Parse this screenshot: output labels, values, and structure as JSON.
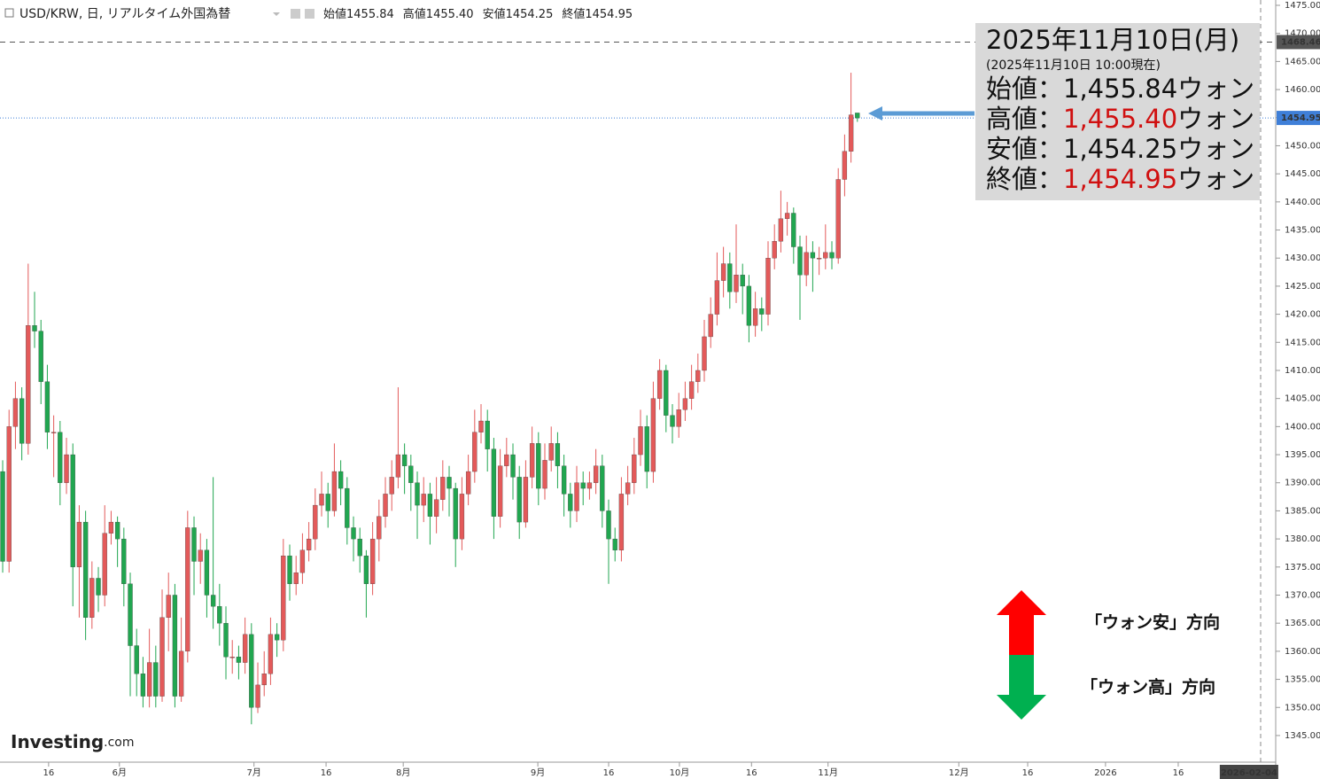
{
  "chart_data": {
    "type": "candlestick",
    "header": {
      "symbol": "USD/KRW, 日, リアルタイム外国為替",
      "ohlc": [
        {
          "label": "始値",
          "value": "1455.84"
        },
        {
          "label": "高値",
          "value": "1455.40"
        },
        {
          "label": "安値",
          "value": "1454.25"
        },
        {
          "label": "終値",
          "value": "1454.95"
        }
      ]
    },
    "up_color": "#e35a5a",
    "down_color": "#21a650",
    "candles": [
      [
        1392,
        1394,
        1374,
        1376
      ],
      [
        1376,
        1403,
        1374,
        1400
      ],
      [
        1400,
        1408,
        1396,
        1405
      ],
      [
        1405,
        1407,
        1394,
        1397
      ],
      [
        1397,
        1429,
        1395,
        1418
      ],
      [
        1418,
        1424,
        1414,
        1417
      ],
      [
        1417,
        1419,
        1404,
        1408
      ],
      [
        1408,
        1411,
        1396,
        1399
      ],
      [
        1399,
        1402,
        1391,
        1399
      ],
      [
        1399,
        1401,
        1386,
        1390
      ],
      [
        1390,
        1398,
        1388,
        1395
      ],
      [
        1395,
        1397,
        1368,
        1375
      ],
      [
        1375,
        1386,
        1366,
        1383
      ],
      [
        1383,
        1385,
        1362,
        1366
      ],
      [
        1366,
        1376,
        1364,
        1373
      ],
      [
        1373,
        1375,
        1367,
        1370
      ],
      [
        1370,
        1386,
        1368,
        1381
      ],
      [
        1381,
        1385,
        1379,
        1383
      ],
      [
        1383,
        1384,
        1375,
        1380
      ],
      [
        1380,
        1382,
        1368,
        1372
      ],
      [
        1372,
        1374,
        1352,
        1361
      ],
      [
        1361,
        1364,
        1352,
        1356
      ],
      [
        1356,
        1359,
        1350,
        1352
      ],
      [
        1352,
        1364,
        1350,
        1358
      ],
      [
        1358,
        1361,
        1350,
        1352
      ],
      [
        1352,
        1371,
        1351,
        1366
      ],
      [
        1366,
        1374,
        1360,
        1370
      ],
      [
        1370,
        1372,
        1350,
        1352
      ],
      [
        1352,
        1366,
        1351,
        1360
      ],
      [
        1360,
        1385,
        1358,
        1382
      ],
      [
        1382,
        1384,
        1370,
        1376
      ],
      [
        1376,
        1381,
        1372,
        1378
      ],
      [
        1378,
        1380,
        1366,
        1370
      ],
      [
        1370,
        1391,
        1364,
        1368
      ],
      [
        1368,
        1372,
        1361,
        1365
      ],
      [
        1365,
        1368,
        1355,
        1359
      ],
      [
        1359,
        1362,
        1356,
        1359
      ],
      [
        1359,
        1361,
        1355,
        1358
      ],
      [
        1358,
        1366,
        1356,
        1363
      ],
      [
        1363,
        1365,
        1347,
        1350
      ],
      [
        1350,
        1358,
        1349,
        1354
      ],
      [
        1354,
        1360,
        1352,
        1356
      ],
      [
        1356,
        1366,
        1354,
        1363
      ],
      [
        1363,
        1365,
        1359,
        1362
      ],
      [
        1362,
        1380,
        1360,
        1377
      ],
      [
        1377,
        1379,
        1369,
        1372
      ],
      [
        1372,
        1377,
        1370,
        1374
      ],
      [
        1374,
        1381,
        1372,
        1378
      ],
      [
        1378,
        1383,
        1376,
        1380
      ],
      [
        1380,
        1389,
        1378,
        1386
      ],
      [
        1386,
        1392,
        1384,
        1388
      ],
      [
        1388,
        1390,
        1382,
        1385
      ],
      [
        1385,
        1397,
        1384,
        1392
      ],
      [
        1392,
        1394,
        1386,
        1389
      ],
      [
        1389,
        1391,
        1379,
        1382
      ],
      [
        1382,
        1384,
        1376,
        1380
      ],
      [
        1380,
        1382,
        1374,
        1377
      ],
      [
        1377,
        1378,
        1366,
        1372
      ],
      [
        1372,
        1383,
        1370,
        1380
      ],
      [
        1380,
        1387,
        1376,
        1384
      ],
      [
        1384,
        1391,
        1382,
        1388
      ],
      [
        1388,
        1394,
        1385,
        1391
      ],
      [
        1391,
        1407,
        1389,
        1395
      ],
      [
        1395,
        1397,
        1388,
        1393
      ],
      [
        1393,
        1395,
        1385,
        1390
      ],
      [
        1390,
        1392,
        1380,
        1386
      ],
      [
        1386,
        1391,
        1383,
        1388
      ],
      [
        1388,
        1390,
        1379,
        1384
      ],
      [
        1384,
        1391,
        1381,
        1387
      ],
      [
        1387,
        1394,
        1385,
        1391
      ],
      [
        1391,
        1393,
        1384,
        1389
      ],
      [
        1389,
        1390,
        1375,
        1380
      ],
      [
        1380,
        1391,
        1378,
        1388
      ],
      [
        1388,
        1395,
        1386,
        1392
      ],
      [
        1392,
        1403,
        1390,
        1399
      ],
      [
        1399,
        1404,
        1397,
        1401
      ],
      [
        1401,
        1403,
        1392,
        1396
      ],
      [
        1396,
        1398,
        1380,
        1384
      ],
      [
        1384,
        1396,
        1382,
        1393
      ],
      [
        1393,
        1398,
        1391,
        1395
      ],
      [
        1395,
        1397,
        1387,
        1391
      ],
      [
        1391,
        1393,
        1380,
        1383
      ],
      [
        1383,
        1394,
        1382,
        1391
      ],
      [
        1391,
        1400,
        1389,
        1397
      ],
      [
        1397,
        1399,
        1386,
        1389
      ],
      [
        1389,
        1397,
        1387,
        1394
      ],
      [
        1394,
        1400,
        1392,
        1397
      ],
      [
        1397,
        1399,
        1389,
        1393
      ],
      [
        1393,
        1395,
        1384,
        1388
      ],
      [
        1388,
        1390,
        1382,
        1385
      ],
      [
        1385,
        1393,
        1383,
        1390
      ],
      [
        1390,
        1392,
        1386,
        1389
      ],
      [
        1389,
        1392,
        1387,
        1390
      ],
      [
        1390,
        1396,
        1388,
        1393
      ],
      [
        1393,
        1395,
        1382,
        1385
      ],
      [
        1385,
        1387,
        1372,
        1380
      ],
      [
        1380,
        1382,
        1376,
        1378
      ],
      [
        1378,
        1391,
        1376,
        1388
      ],
      [
        1388,
        1393,
        1386,
        1390
      ],
      [
        1390,
        1398,
        1388,
        1395
      ],
      [
        1395,
        1403,
        1393,
        1400
      ],
      [
        1400,
        1402,
        1389,
        1392
      ],
      [
        1392,
        1408,
        1390,
        1405
      ],
      [
        1405,
        1412,
        1403,
        1410
      ],
      [
        1410,
        1411,
        1399,
        1402
      ],
      [
        1402,
        1404,
        1397,
        1400
      ],
      [
        1400,
        1406,
        1398,
        1403
      ],
      [
        1403,
        1408,
        1401,
        1405
      ],
      [
        1405,
        1411,
        1403,
        1408
      ],
      [
        1408,
        1413,
        1406,
        1410
      ],
      [
        1410,
        1419,
        1408,
        1416
      ],
      [
        1416,
        1423,
        1414,
        1420
      ],
      [
        1420,
        1431,
        1418,
        1426
      ],
      [
        1426,
        1432,
        1423,
        1429
      ],
      [
        1429,
        1431,
        1421,
        1424
      ],
      [
        1424,
        1436,
        1422,
        1427
      ],
      [
        1427,
        1429,
        1420,
        1425
      ],
      [
        1425,
        1427,
        1415,
        1418
      ],
      [
        1418,
        1424,
        1416,
        1421
      ],
      [
        1421,
        1423,
        1417,
        1420
      ],
      [
        1420,
        1433,
        1418,
        1430
      ],
      [
        1430,
        1436,
        1428,
        1433
      ],
      [
        1433,
        1442,
        1431,
        1437
      ],
      [
        1437,
        1440,
        1434,
        1438
      ],
      [
        1438,
        1439,
        1429,
        1432
      ],
      [
        1432,
        1434,
        1419,
        1427
      ],
      [
        1427,
        1434,
        1425,
        1431
      ],
      [
        1431,
        1433,
        1424,
        1430
      ],
      [
        1430,
        1432,
        1427,
        1430
      ],
      [
        1430,
        1436,
        1428,
        1431
      ],
      [
        1431,
        1433,
        1428,
        1430
      ],
      [
        1430,
        1446,
        1429,
        1444
      ],
      [
        1444,
        1452,
        1441,
        1449
      ],
      [
        1449,
        1463,
        1447,
        1455.5
      ],
      [
        1455.84,
        1455.4,
        1454.25,
        1454.95
      ]
    ],
    "xlim": [
      -0.42,
      197.5
    ],
    "xticks": [
      {
        "value": 7.2,
        "label": "16"
      },
      {
        "value": 18.3,
        "label": "6月"
      },
      {
        "value": 39.4,
        "label": "7月"
      },
      {
        "value": 50.7,
        "label": "16"
      },
      {
        "value": 62.8,
        "label": "8月"
      },
      {
        "value": 83.9,
        "label": "9月"
      },
      {
        "value": 95,
        "label": "16"
      },
      {
        "value": 106.1,
        "label": "10月"
      },
      {
        "value": 117.4,
        "label": "16"
      },
      {
        "value": 129.4,
        "label": "11月"
      },
      {
        "value": 149.9,
        "label": "12月"
      },
      {
        "value": 160.7,
        "label": "16"
      },
      {
        "value": 172.9,
        "label": "2026"
      },
      {
        "value": 184.3,
        "label": "16"
      }
    ],
    "cursor_date": {
      "value": 195.4,
      "label": "2026-02-04"
    },
    "ylim": [
      1342,
      1477
    ],
    "yticks": [
      {
        "value": 1345,
        "label": "1345.00"
      },
      {
        "value": 1350,
        "label": "1350.00"
      },
      {
        "value": 1355,
        "label": "1355.00"
      },
      {
        "value": 1360,
        "label": "1360.00"
      },
      {
        "value": 1365,
        "label": "1365.00"
      },
      {
        "value": 1370,
        "label": "1370.00"
      },
      {
        "value": 1375,
        "label": "1375.00"
      },
      {
        "value": 1380,
        "label": "1380.00"
      },
      {
        "value": 1385,
        "label": "1385.00"
      },
      {
        "value": 1390,
        "label": "1390.00"
      },
      {
        "value": 1395,
        "label": "1395.00"
      },
      {
        "value": 1400,
        "label": "1400.00"
      },
      {
        "value": 1405,
        "label": "1405.00"
      },
      {
        "value": 1410,
        "label": "1410.00"
      },
      {
        "value": 1415,
        "label": "1415.00"
      },
      {
        "value": 1420,
        "label": "1420.00"
      },
      {
        "value": 1425,
        "label": "1425.00"
      },
      {
        "value": 1430,
        "label": "1430.00"
      },
      {
        "value": 1435,
        "label": "1435.00"
      },
      {
        "value": 1440,
        "label": "1440.00"
      },
      {
        "value": 1445,
        "label": "1445.00"
      },
      {
        "value": 1450,
        "label": "1450.00"
      },
      {
        "value": 1455,
        "label": "1455.00"
      },
      {
        "value": 1460,
        "label": "1460.00"
      },
      {
        "value": 1465,
        "label": "1465.00"
      },
      {
        "value": 1470,
        "label": "1470.00"
      },
      {
        "value": 1475,
        "label": "1475.00"
      }
    ],
    "price_lines": [
      {
        "value": 1468.46,
        "label": "1468.46",
        "color": "#555555",
        "dash": "6,5"
      },
      {
        "value": 1454.95,
        "label": "1454.95",
        "color": "#3f7fd8",
        "dash": "1,2"
      }
    ],
    "annotation": {
      "date": "2025年11月10日(月)",
      "note": "(2025年11月10日 10:00現在)",
      "rows": [
        {
          "label": "始値：",
          "value": "1,455.84",
          "unit": "ウォン",
          "value_color": "#111111"
        },
        {
          "label": "高値：",
          "value": "1,455.40",
          "unit": "ウォン",
          "value_color": "#d01010"
        },
        {
          "label": "安値：",
          "value": "1,454.25",
          "unit": "ウォン",
          "value_color": "#111111"
        },
        {
          "label": "終値：",
          "value": "1,454.95",
          "unit": "ウォン",
          "value_color": "#d01010"
        }
      ]
    },
    "direction_legend": {
      "up": "「ウォン安」方向",
      "down": "「ウォン高」方向"
    },
    "logo": {
      "brand": "Investing",
      "suffix": ".com"
    }
  }
}
